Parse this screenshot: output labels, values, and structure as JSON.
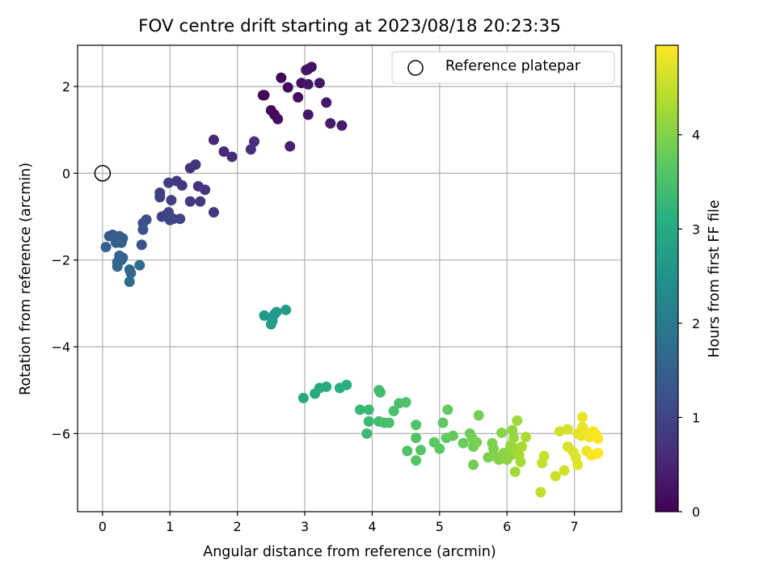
{
  "chart_data": {
    "type": "scatter",
    "title": "FOV centre drift starting at 2023/08/18 20:23:35",
    "xlabel": "Angular distance from reference (arcmin)",
    "ylabel": "Rotation from reference (arcmin)",
    "xlim": [
      -0.37,
      7.7
    ],
    "ylim": [
      -7.8,
      2.95
    ],
    "xticks": [
      0,
      1,
      2,
      3,
      4,
      5,
      6,
      7
    ],
    "yticks": [
      -6,
      -4,
      -2,
      0,
      2
    ],
    "grid": true,
    "colormap": "viridis",
    "legend": {
      "label": "Reference platepar",
      "placement": "top-right"
    },
    "reference_point": {
      "x": 0,
      "y": 0
    },
    "colorbar": {
      "label": "Hours from first FF file",
      "range": [
        0,
        4.95
      ],
      "ticks": [
        0,
        1,
        2,
        3,
        4
      ]
    },
    "points": [
      {
        "x": 2.38,
        "y": 1.8,
        "c": 0.05
      },
      {
        "x": 2.4,
        "y": 1.8,
        "c": 0.06
      },
      {
        "x": 2.65,
        "y": 2.2,
        "c": 0.08
      },
      {
        "x": 2.75,
        "y": 1.98,
        "c": 0.1
      },
      {
        "x": 2.5,
        "y": 1.45,
        "c": 0.12
      },
      {
        "x": 2.55,
        "y": 1.35,
        "c": 0.14
      },
      {
        "x": 2.6,
        "y": 1.25,
        "c": 0.16
      },
      {
        "x": 2.9,
        "y": 1.75,
        "c": 0.18
      },
      {
        "x": 2.95,
        "y": 2.08,
        "c": 0.2
      },
      {
        "x": 3.05,
        "y": 2.4,
        "c": 0.22
      },
      {
        "x": 3.1,
        "y": 2.45,
        "c": 0.24
      },
      {
        "x": 3.02,
        "y": 2.38,
        "c": 0.26
      },
      {
        "x": 3.05,
        "y": 2.05,
        "c": 0.28
      },
      {
        "x": 3.05,
        "y": 1.35,
        "c": 0.3
      },
      {
        "x": 3.22,
        "y": 2.08,
        "c": 0.32
      },
      {
        "x": 3.32,
        "y": 1.63,
        "c": 0.35
      },
      {
        "x": 3.38,
        "y": 1.15,
        "c": 0.38
      },
      {
        "x": 3.55,
        "y": 1.1,
        "c": 0.4
      },
      {
        "x": 2.78,
        "y": 0.62,
        "c": 0.42
      },
      {
        "x": 1.65,
        "y": 0.77,
        "c": 0.55
      },
      {
        "x": 1.8,
        "y": 0.5,
        "c": 0.58
      },
      {
        "x": 1.92,
        "y": 0.38,
        "c": 0.6
      },
      {
        "x": 2.2,
        "y": 0.55,
        "c": 0.62
      },
      {
        "x": 2.25,
        "y": 0.73,
        "c": 0.64
      },
      {
        "x": 1.38,
        "y": 0.2,
        "c": 0.7
      },
      {
        "x": 1.3,
        "y": 0.12,
        "c": 0.72
      },
      {
        "x": 1.42,
        "y": -0.3,
        "c": 0.74
      },
      {
        "x": 1.52,
        "y": -0.38,
        "c": 0.76
      },
      {
        "x": 1.65,
        "y": -0.9,
        "c": 0.78
      },
      {
        "x": 1.45,
        "y": -0.65,
        "c": 0.8
      },
      {
        "x": 1.3,
        "y": -0.65,
        "c": 0.82
      },
      {
        "x": 1.18,
        "y": -0.28,
        "c": 0.84
      },
      {
        "x": 1.1,
        "y": -0.18,
        "c": 0.86
      },
      {
        "x": 0.98,
        "y": -0.22,
        "c": 0.88
      },
      {
        "x": 1.02,
        "y": -0.62,
        "c": 0.9
      },
      {
        "x": 0.85,
        "y": -0.45,
        "c": 0.92
      },
      {
        "x": 0.85,
        "y": -0.55,
        "c": 0.94
      },
      {
        "x": 0.88,
        "y": -1.0,
        "c": 0.96
      },
      {
        "x": 0.95,
        "y": -0.95,
        "c": 0.98
      },
      {
        "x": 0.98,
        "y": -0.9,
        "c": 1.0
      },
      {
        "x": 1.0,
        "y": -1.08,
        "c": 1.02
      },
      {
        "x": 1.05,
        "y": -1.05,
        "c": 1.04
      },
      {
        "x": 1.15,
        "y": -1.05,
        "c": 1.06
      },
      {
        "x": 0.65,
        "y": -1.07,
        "c": 1.2
      },
      {
        "x": 0.6,
        "y": -1.15,
        "c": 1.22
      },
      {
        "x": 0.6,
        "y": -1.3,
        "c": 1.24
      },
      {
        "x": 0.58,
        "y": -1.65,
        "c": 1.26
      },
      {
        "x": 0.1,
        "y": -1.45,
        "c": 1.4
      },
      {
        "x": 0.15,
        "y": -1.42,
        "c": 1.42
      },
      {
        "x": 0.2,
        "y": -1.48,
        "c": 1.44
      },
      {
        "x": 0.25,
        "y": -1.45,
        "c": 1.46
      },
      {
        "x": 0.3,
        "y": -1.5,
        "c": 1.48
      },
      {
        "x": 0.28,
        "y": -1.6,
        "c": 1.5
      },
      {
        "x": 0.2,
        "y": -1.6,
        "c": 1.52
      },
      {
        "x": 0.05,
        "y": -1.7,
        "c": 1.54
      },
      {
        "x": 0.25,
        "y": -1.9,
        "c": 1.56
      },
      {
        "x": 0.28,
        "y": -2.0,
        "c": 1.58
      },
      {
        "x": 0.3,
        "y": -1.95,
        "c": 1.6
      },
      {
        "x": 0.22,
        "y": -2.15,
        "c": 1.62
      },
      {
        "x": 0.22,
        "y": -2.05,
        "c": 1.64
      },
      {
        "x": 0.4,
        "y": -2.22,
        "c": 1.66
      },
      {
        "x": 0.42,
        "y": -2.3,
        "c": 1.68
      },
      {
        "x": 0.4,
        "y": -2.5,
        "c": 1.7
      },
      {
        "x": 0.55,
        "y": -2.12,
        "c": 1.72
      },
      {
        "x": 2.4,
        "y": -3.28,
        "c": 2.6
      },
      {
        "x": 2.55,
        "y": -3.25,
        "c": 2.62
      },
      {
        "x": 2.58,
        "y": -3.2,
        "c": 2.64
      },
      {
        "x": 2.52,
        "y": -3.4,
        "c": 2.66
      },
      {
        "x": 2.5,
        "y": -3.48,
        "c": 2.68
      },
      {
        "x": 2.72,
        "y": -3.15,
        "c": 2.7
      },
      {
        "x": 2.98,
        "y": -5.18,
        "c": 3.0
      },
      {
        "x": 3.15,
        "y": -5.08,
        "c": 3.02
      },
      {
        "x": 3.22,
        "y": -4.95,
        "c": 3.04
      },
      {
        "x": 3.32,
        "y": -4.92,
        "c": 3.06
      },
      {
        "x": 3.52,
        "y": -4.95,
        "c": 3.08
      },
      {
        "x": 3.62,
        "y": -4.88,
        "c": 3.1
      },
      {
        "x": 3.82,
        "y": -5.45,
        "c": 3.3
      },
      {
        "x": 3.95,
        "y": -5.45,
        "c": 3.32
      },
      {
        "x": 3.95,
        "y": -5.72,
        "c": 3.34
      },
      {
        "x": 3.92,
        "y": -6.0,
        "c": 3.36
      },
      {
        "x": 4.1,
        "y": -5.0,
        "c": 3.38
      },
      {
        "x": 4.12,
        "y": -5.05,
        "c": 3.4
      },
      {
        "x": 4.1,
        "y": -5.72,
        "c": 3.42
      },
      {
        "x": 4.18,
        "y": -5.75,
        "c": 3.44
      },
      {
        "x": 4.25,
        "y": -5.75,
        "c": 3.46
      },
      {
        "x": 4.32,
        "y": -5.48,
        "c": 3.48
      },
      {
        "x": 4.4,
        "y": -5.3,
        "c": 3.5
      },
      {
        "x": 4.5,
        "y": -5.28,
        "c": 3.52
      },
      {
        "x": 4.52,
        "y": -6.4,
        "c": 3.54
      },
      {
        "x": 4.65,
        "y": -5.8,
        "c": 3.56
      },
      {
        "x": 4.65,
        "y": -6.1,
        "c": 3.58
      },
      {
        "x": 4.65,
        "y": -6.62,
        "c": 3.6
      },
      {
        "x": 4.72,
        "y": -6.38,
        "c": 3.62
      },
      {
        "x": 4.92,
        "y": -6.2,
        "c": 3.66
      },
      {
        "x": 5.0,
        "y": -6.35,
        "c": 3.68
      },
      {
        "x": 5.05,
        "y": -5.75,
        "c": 3.7
      },
      {
        "x": 5.1,
        "y": -6.1,
        "c": 3.72
      },
      {
        "x": 5.12,
        "y": -5.45,
        "c": 3.74
      },
      {
        "x": 5.2,
        "y": -6.05,
        "c": 3.76
      },
      {
        "x": 5.35,
        "y": -6.22,
        "c": 3.8
      },
      {
        "x": 5.45,
        "y": -6.0,
        "c": 3.82
      },
      {
        "x": 5.5,
        "y": -6.3,
        "c": 3.84
      },
      {
        "x": 5.48,
        "y": -6.1,
        "c": 3.86
      },
      {
        "x": 5.5,
        "y": -6.72,
        "c": 3.88
      },
      {
        "x": 5.58,
        "y": -5.58,
        "c": 3.9
      },
      {
        "x": 5.55,
        "y": -6.2,
        "c": 3.92
      },
      {
        "x": 5.72,
        "y": -6.55,
        "c": 3.94
      },
      {
        "x": 5.78,
        "y": -6.22,
        "c": 3.96
      },
      {
        "x": 5.8,
        "y": -6.35,
        "c": 3.98
      },
      {
        "x": 5.82,
        "y": -6.52,
        "c": 4.0
      },
      {
        "x": 5.88,
        "y": -6.6,
        "c": 4.02
      },
      {
        "x": 5.92,
        "y": -5.98,
        "c": 4.04
      },
      {
        "x": 5.95,
        "y": -6.45,
        "c": 4.06
      },
      {
        "x": 6.0,
        "y": -6.6,
        "c": 4.08
      },
      {
        "x": 6.05,
        "y": -6.5,
        "c": 4.1
      },
      {
        "x": 6.05,
        "y": -6.28,
        "c": 4.12
      },
      {
        "x": 6.08,
        "y": -5.92,
        "c": 4.14
      },
      {
        "x": 6.1,
        "y": -6.1,
        "c": 4.16
      },
      {
        "x": 6.12,
        "y": -6.35,
        "c": 4.18
      },
      {
        "x": 6.15,
        "y": -6.42,
        "c": 4.2
      },
      {
        "x": 6.15,
        "y": -5.7,
        "c": 4.22
      },
      {
        "x": 6.12,
        "y": -6.88,
        "c": 4.24
      },
      {
        "x": 6.2,
        "y": -6.65,
        "c": 4.26
      },
      {
        "x": 6.18,
        "y": -6.5,
        "c": 4.28
      },
      {
        "x": 6.22,
        "y": -6.3,
        "c": 4.3
      },
      {
        "x": 6.28,
        "y": -6.08,
        "c": 4.32
      },
      {
        "x": 6.5,
        "y": -7.35,
        "c": 4.5
      },
      {
        "x": 6.52,
        "y": -6.68,
        "c": 4.52
      },
      {
        "x": 6.55,
        "y": -6.52,
        "c": 4.54
      },
      {
        "x": 6.72,
        "y": -6.98,
        "c": 4.58
      },
      {
        "x": 6.78,
        "y": -5.95,
        "c": 4.6
      },
      {
        "x": 6.85,
        "y": -6.85,
        "c": 4.62
      },
      {
        "x": 6.9,
        "y": -5.9,
        "c": 4.64
      },
      {
        "x": 6.9,
        "y": -6.3,
        "c": 4.66
      },
      {
        "x": 6.98,
        "y": -6.42,
        "c": 4.68
      },
      {
        "x": 7.02,
        "y": -6.55,
        "c": 4.7
      },
      {
        "x": 7.05,
        "y": -6.72,
        "c": 4.72
      },
      {
        "x": 7.05,
        "y": -6.0,
        "c": 4.74
      },
      {
        "x": 7.1,
        "y": -6.05,
        "c": 4.76
      },
      {
        "x": 7.12,
        "y": -5.85,
        "c": 4.78
      },
      {
        "x": 7.12,
        "y": -5.62,
        "c": 4.8
      },
      {
        "x": 7.15,
        "y": -5.95,
        "c": 4.82
      },
      {
        "x": 7.18,
        "y": -6.4,
        "c": 4.84
      },
      {
        "x": 7.22,
        "y": -6.08,
        "c": 4.86
      },
      {
        "x": 7.25,
        "y": -6.5,
        "c": 4.88
      },
      {
        "x": 7.28,
        "y": -5.95,
        "c": 4.9
      },
      {
        "x": 7.3,
        "y": -6.48,
        "c": 4.91
      },
      {
        "x": 7.32,
        "y": -6.02,
        "c": 4.92
      },
      {
        "x": 7.35,
        "y": -6.12,
        "c": 4.93
      },
      {
        "x": 7.35,
        "y": -6.45,
        "c": 4.94
      }
    ]
  }
}
